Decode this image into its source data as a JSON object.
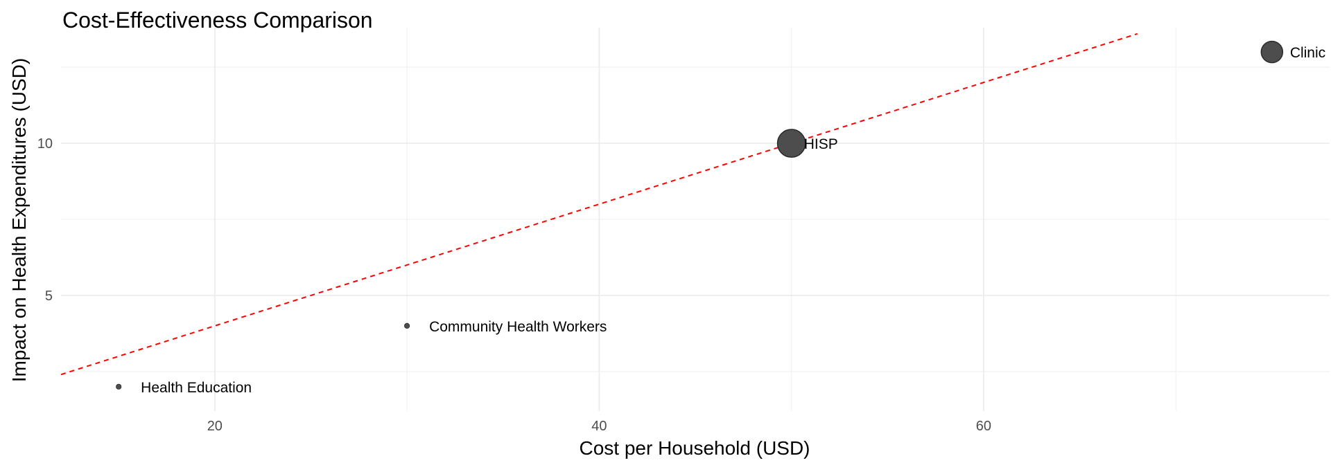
{
  "chart_data": {
    "type": "scatter",
    "title": "Cost-Effectiveness Comparison",
    "xlabel": "Cost per Household (USD)",
    "ylabel": "Impact on Health Expenditures (USD)",
    "xlim": [
      12,
      78
    ],
    "ylim": [
      1.2,
      13.8
    ],
    "x_ticks": [
      20,
      40,
      60
    ],
    "y_ticks": [
      5,
      10
    ],
    "x_minor": [
      30,
      50,
      70
    ],
    "y_minor": [
      2.5,
      7.5,
      12.5
    ],
    "grid": true,
    "points": [
      {
        "label": "Health Education",
        "x": 15,
        "y": 2,
        "size": 1
      },
      {
        "label": "Community Health Workers",
        "x": 30,
        "y": 4,
        "size": 1
      },
      {
        "label": "HISP",
        "x": 50,
        "y": 10,
        "size": 7
      },
      {
        "label": "Clinic",
        "x": 75,
        "y": 13,
        "size": 5
      }
    ],
    "reference_line": {
      "style": "dashed",
      "color": "#ff0000",
      "x": [
        12,
        68
      ],
      "y": [
        2.4,
        13.6
      ]
    },
    "point_color": "#4d4d4d"
  }
}
